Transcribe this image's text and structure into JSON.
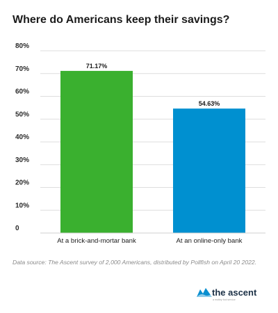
{
  "chart_data": {
    "type": "bar",
    "title": "Where do Americans keep their savings?",
    "categories": [
      "At a brick-and-mortar bank",
      "At an online-only bank"
    ],
    "values": [
      71.17,
      54.63
    ],
    "data_labels": [
      "71.17%",
      "54.63%"
    ],
    "bar_colors": [
      "#3ab02f",
      "#0090d0"
    ],
    "ylim": [
      0,
      80
    ],
    "y_ticks": [
      0,
      10,
      20,
      30,
      40,
      50,
      60,
      70,
      80
    ],
    "y_tick_labels": [
      "0",
      "10%",
      "20%",
      "30%",
      "40%",
      "50%",
      "60%",
      "70%",
      "80%"
    ],
    "xlabel": "",
    "ylabel": "",
    "grid": true,
    "gridline_color": "#dddddd"
  },
  "source_note": "Data source: The Ascent survey of 2,000 Americans, distributed by Pollfish on April 20 2022.",
  "brand": {
    "name": "the ascent",
    "tagline": "a motley fool service",
    "logo_icon": "mountain-wave-icon",
    "logo_color": "#0a8fd0"
  }
}
